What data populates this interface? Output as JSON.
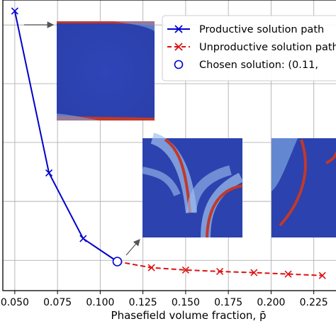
{
  "chart_data": {
    "type": "line",
    "xlabel": "Phasefield volume fraction, p̄",
    "xlim": [
      0.043,
      0.238
    ],
    "ylim": [
      0,
      1
    ],
    "grid": true,
    "legend_placement": "top-right",
    "x_ticks": [
      "0.050",
      "0.075",
      "0.100",
      "0.125",
      "0.150",
      "0.175",
      "0.200",
      "0.225"
    ],
    "x_tick_values": [
      0.05,
      0.075,
      0.1,
      0.125,
      0.15,
      0.175,
      0.2,
      0.225
    ],
    "y_gridlines": [
      0.104,
      0.307,
      0.51,
      0.712,
      0.914
    ],
    "series": [
      {
        "name": "Productive solution path",
        "color": "#0000cc",
        "style": "solid",
        "marker": "x",
        "x": [
          0.05,
          0.07,
          0.09,
          0.11
        ],
        "y": [
          0.962,
          0.405,
          0.179,
          0.1
        ]
      },
      {
        "name": "Unproductive solution path",
        "color": "#dd1111",
        "style": "dashed",
        "marker": "x",
        "x": [
          0.11,
          0.13,
          0.15,
          0.17,
          0.19,
          0.21,
          0.23
        ],
        "y": [
          0.1,
          0.079,
          0.071,
          0.066,
          0.062,
          0.057,
          0.052
        ]
      }
    ],
    "chosen_point": {
      "name": "Chosen solution: (0.11,",
      "color": "#0000cc",
      "x": 0.11,
      "y": 0.1
    },
    "insets": [
      {
        "name": "inset-topology-1",
        "pattern": "bands"
      },
      {
        "name": "inset-topology-2",
        "pattern": "spiral"
      },
      {
        "name": "inset-topology-3",
        "pattern": "spiral-partial"
      }
    ]
  }
}
